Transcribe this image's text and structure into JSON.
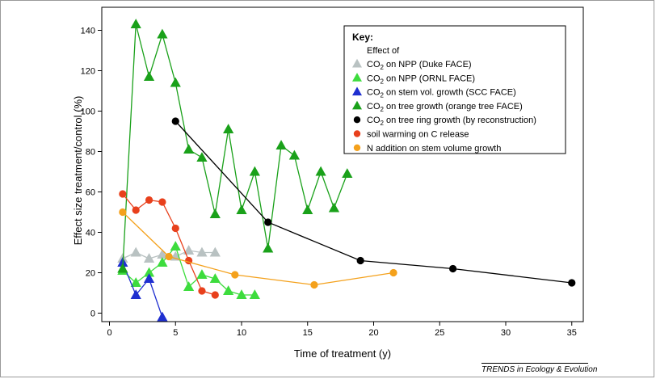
{
  "chart_data": {
    "type": "line",
    "xlabel": "Time of treatment (y)",
    "ylabel": "Effect size treatment/control (%)",
    "xlim": [
      0,
      36
    ],
    "ylim": [
      -5,
      150
    ],
    "xticks": [
      0,
      5,
      10,
      15,
      20,
      25,
      30,
      35
    ],
    "yticks": [
      0,
      20,
      40,
      60,
      80,
      100,
      120,
      140
    ],
    "legend": {
      "title": "Key:",
      "subtitle": "Effect of",
      "placement": "top-right"
    },
    "series": [
      {
        "name": "CO2 on NPP (Duke FACE)",
        "label_pre": "CO",
        "label_sub": "2",
        "label_post": " on NPP (Duke FACE)",
        "color": "#b9c2c2",
        "marker": "triangle",
        "x": [
          1,
          2,
          3,
          4,
          5,
          6,
          7,
          8
        ],
        "y": [
          27,
          30,
          27,
          29,
          28,
          31,
          30,
          30
        ]
      },
      {
        "name": "CO2 on NPP (ORNL FACE)",
        "label_pre": "CO",
        "label_sub": "2",
        "label_post": " on NPP (ORNL FACE)",
        "color": "#3ddc3d",
        "marker": "triangle",
        "x": [
          1,
          2,
          3,
          4,
          5,
          6,
          7,
          8,
          9,
          10,
          11
        ],
        "y": [
          21,
          15,
          20,
          25,
          33,
          13,
          19,
          17,
          11,
          9,
          9
        ]
      },
      {
        "name": "CO2 on stem vol. growth (SCC FACE)",
        "label_pre": "CO",
        "label_sub": "2",
        "label_post": " on stem vol. growth (SCC FACE)",
        "color": "#1f2fd0",
        "marker": "triangle",
        "x": [
          1,
          2,
          3,
          4
        ],
        "y": [
          25,
          9,
          17,
          -2
        ]
      },
      {
        "name": "CO2 on tree growth (orange tree FACE)",
        "label_pre": "CO",
        "label_sub": "2",
        "label_post": " on tree growth (orange tree FACE)",
        "color": "#1aa11a",
        "marker": "triangle",
        "x": [
          1,
          2,
          3,
          4,
          5,
          6,
          7,
          8,
          9,
          10,
          11,
          12,
          13,
          14,
          15,
          16,
          17,
          18
        ],
        "y": [
          22,
          143,
          117,
          138,
          114,
          81,
          77,
          49,
          91,
          51,
          70,
          32,
          83,
          78,
          51,
          70,
          52,
          69
        ]
      },
      {
        "name": "CO2 on tree ring growth (by reconstruction)",
        "label_pre": "CO",
        "label_sub": "2",
        "label_post": " on tree ring growth (by reconstruction)",
        "color": "#000000",
        "marker": "circle",
        "x": [
          5,
          12,
          19,
          26,
          35
        ],
        "y": [
          95,
          45,
          26,
          22,
          15
        ]
      },
      {
        "name": "soil warming on C release",
        "label_pre": "soil warming on C release",
        "label_sub": "",
        "label_post": "",
        "color": "#e8401c",
        "marker": "circle",
        "x": [
          1,
          2,
          3,
          4,
          5,
          6,
          7,
          8
        ],
        "y": [
          59,
          51,
          56,
          55,
          42,
          26,
          11,
          9
        ]
      },
      {
        "name": "N addition on stem volume growth",
        "label_pre": "N addition on stem volume growth",
        "label_sub": "",
        "label_post": "",
        "color": "#f4a11c",
        "marker": "circle",
        "x": [
          1,
          4.5,
          9.5,
          15.5,
          21.5
        ],
        "y": [
          50,
          28,
          19,
          14,
          20
        ]
      }
    ]
  },
  "credit": "TRENDS in Ecology & Evolution"
}
